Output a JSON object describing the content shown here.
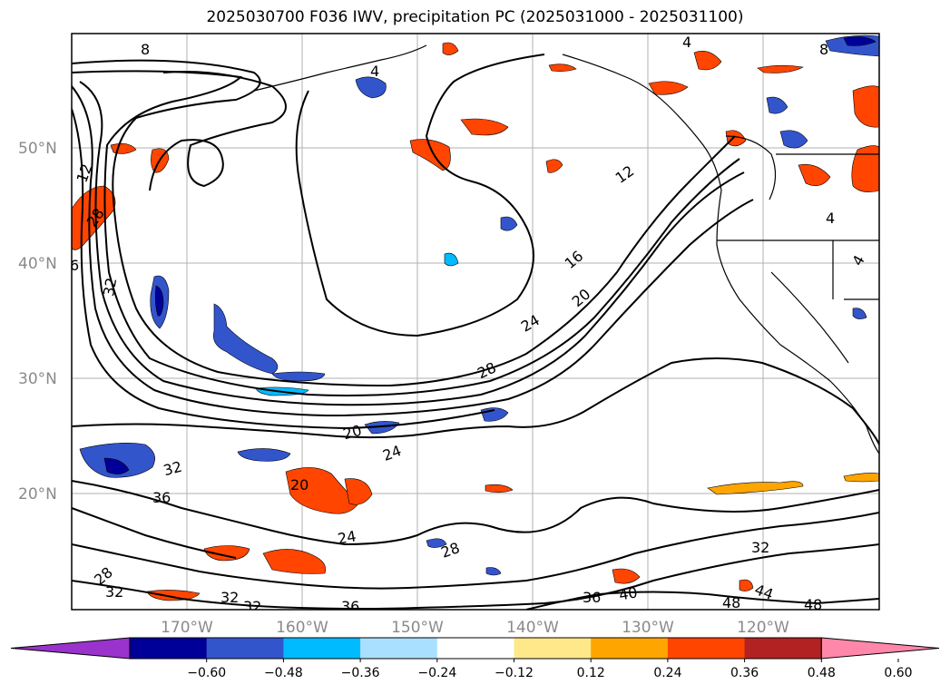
{
  "title": "2025030700 F036 IWV, precipitation PC (2025031000 - 2025031100)",
  "map": {
    "lat_labels": [
      "50°N",
      "40°N",
      "30°N",
      "20°N"
    ],
    "lon_labels": [
      "170°W",
      "160°W",
      "150°W",
      "140°W",
      "130°W",
      "120°W"
    ],
    "contour_labels": [
      "8",
      "4",
      "8",
      "4",
      "12",
      "12",
      "28",
      "6",
      "32",
      "16",
      "20",
      "24",
      "28",
      "20",
      "24",
      "32",
      "36",
      "20",
      "24",
      "28",
      "32",
      "36",
      "40",
      "48",
      "44",
      "48",
      "32",
      "32",
      "36",
      "28",
      "32",
      "4",
      "4"
    ]
  },
  "colorbar": {
    "ticks": [
      "−0.60",
      "−0.48",
      "−0.36",
      "−0.24",
      "−0.12",
      "0.12",
      "0.24",
      "0.36",
      "0.48",
      "0.60"
    ],
    "colors": [
      "#9933cc",
      "#000099",
      "#3355cc",
      "#00bbff",
      "#aae0ff",
      "#ffffff",
      "#ffe88a",
      "#ffa500",
      "#ff4500",
      "#b22222",
      "#ff88aa"
    ]
  }
}
